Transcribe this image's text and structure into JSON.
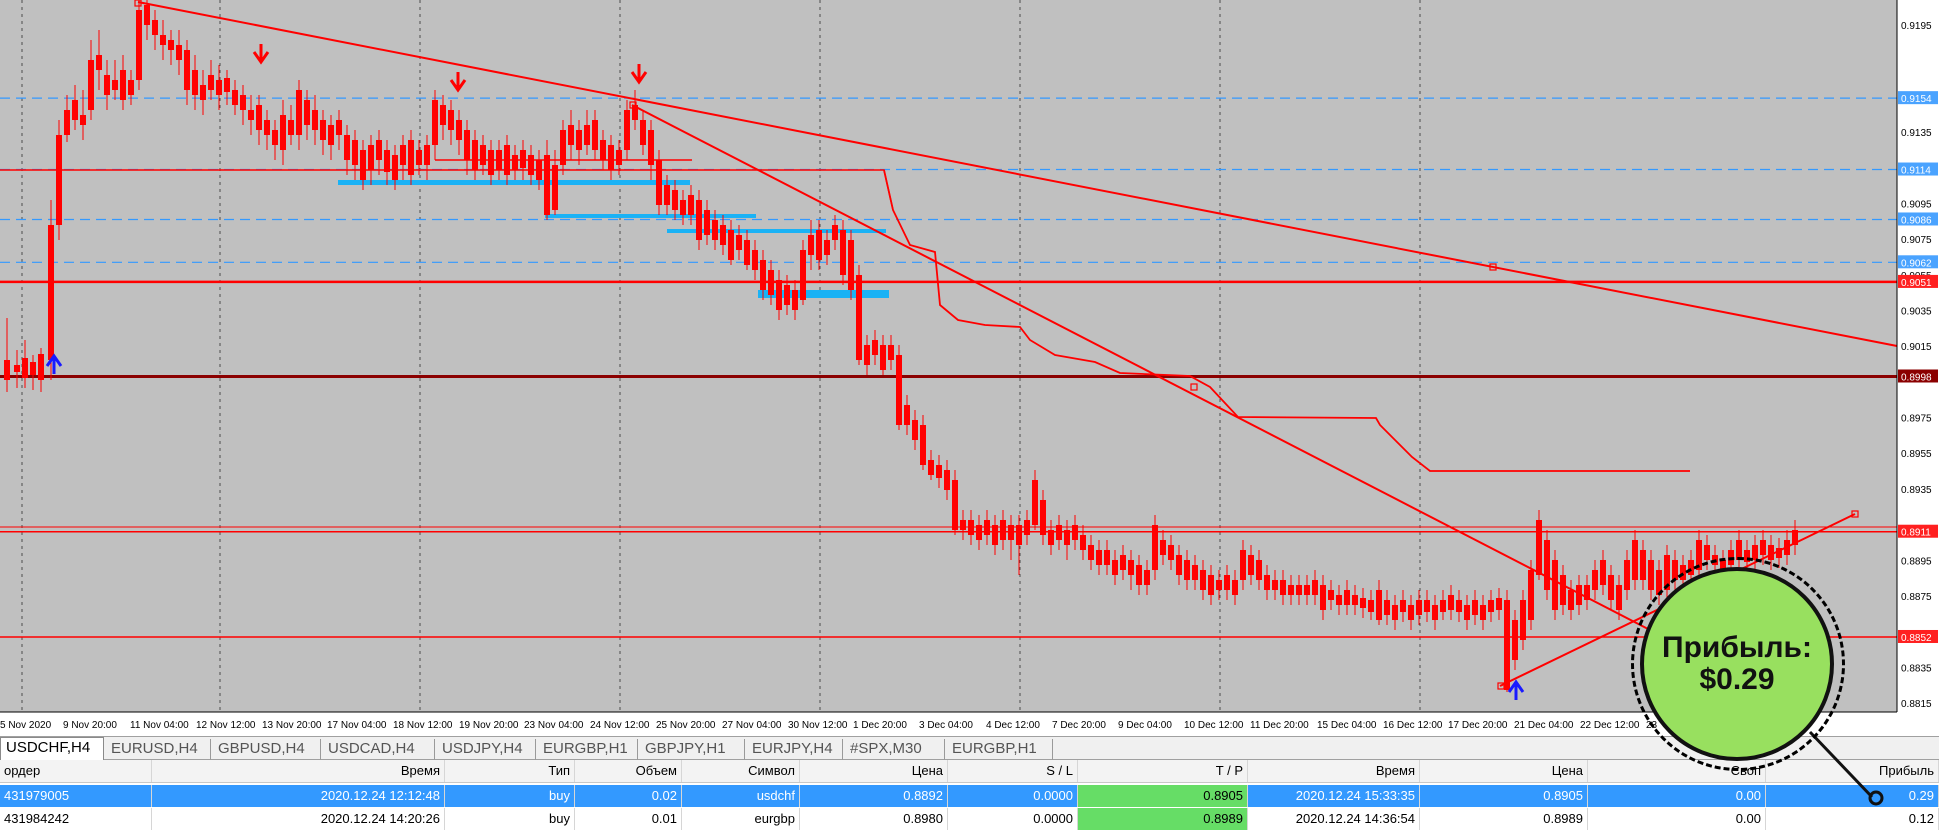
{
  "chart": {
    "symbol": "USDCHF.H4",
    "price_labels": [
      {
        "text": "0.9195",
        "y": 0.9195
      },
      {
        "text": "0.9154",
        "y": 0.9154,
        "boxed": true
      },
      {
        "text": "0.9135",
        "y": 0.9135
      },
      {
        "text": "0.9114",
        "y": 0.9114,
        "boxed": true
      },
      {
        "text": "0.9095",
        "y": 0.9095
      },
      {
        "text": "0.9086",
        "y": 0.9086,
        "boxed": true
      },
      {
        "text": "0.9075",
        "y": 0.9075
      },
      {
        "text": "0.9062",
        "y": 0.9062,
        "boxed": true
      },
      {
        "text": "0.9055",
        "y": 0.9055
      },
      {
        "text": "0.9051",
        "y": 0.9051,
        "boxed": true,
        "red": true
      },
      {
        "text": "0.9035",
        "y": 0.9035
      },
      {
        "text": "0.9015",
        "y": 0.9015
      },
      {
        "text": "0.8998",
        "y": 0.8998,
        "boxed": true,
        "dark": true
      },
      {
        "text": "0.8975",
        "y": 0.8975
      },
      {
        "text": "0.8955",
        "y": 0.8955
      },
      {
        "text": "0.8935",
        "y": 0.8935
      },
      {
        "text": "0.8911",
        "y": 0.8911,
        "boxed": true,
        "red": true
      },
      {
        "text": "0.8895",
        "y": 0.8895
      },
      {
        "text": "0.8875",
        "y": 0.8875
      },
      {
        "text": "0.8852",
        "y": 0.8852,
        "boxed": true,
        "red": true
      },
      {
        "text": "0.8835",
        "y": 0.8835
      },
      {
        "text": "0.8815",
        "y": 0.8815
      }
    ],
    "time_labels": [
      "5 Nov 2020",
      "9 Nov 20:00",
      "11 Nov 04:00",
      "12 Nov 12:00",
      "13 Nov 20:00",
      "17 Nov 04:00",
      "18 Nov 12:00",
      "19 Nov 20:00",
      "23 Nov 04:00",
      "24 Nov 12:00",
      "25 Nov 20:00",
      "27 Nov 04:00",
      "30 Nov 12:00",
      "1 Dec 20:00",
      "3 Dec 04:00",
      "4 Dec 12:00",
      "7 Dec 20:00",
      "9 Dec 04:00",
      "10 Dec 12:00",
      "11 Dec 20:00",
      "15 Dec 04:00",
      "16 Dec 12:00",
      "17 Dec 20:00",
      "21 Dec 04:00",
      "22 Dec 12:00",
      "23"
    ],
    "colors": {
      "bull": "#2e9b2e",
      "bear": "#ff0000",
      "line": "#ff0000",
      "dash": "#3399ff",
      "zone": "#1ab2f5",
      "dark": "#8b0000",
      "grid": "#000000"
    }
  },
  "tabs": [
    "USDCHF,H4",
    "EURUSD,H4",
    "GBPUSD,H4",
    "USDCAD,H4",
    "USDJPY,H4",
    "EURGBP,H1",
    "GBPJPY,H1",
    "EURJPY,H4",
    "#SPX,M30",
    "EURGBP,H1"
  ],
  "table": {
    "headers": [
      "ордер",
      "Время",
      "Тип",
      "Объем",
      "Символ",
      "Цена",
      "S / L",
      "T / P",
      "Время",
      "Цена",
      "Своп",
      "Прибыль"
    ],
    "rows": [
      [
        "431979005",
        "2020.12.24 12:12:48",
        "buy",
        "0.02",
        "usdchf",
        "0.8892",
        "0.0000",
        "0.8905",
        "2020.12.24 15:33:35",
        "0.8905",
        "0.00",
        "0.29"
      ],
      [
        "431984242",
        "2020.12.24 14:20:26",
        "buy",
        "0.01",
        "eurgbp",
        "0.8980",
        "0.0000",
        "0.8989",
        "2020.12.24 14:36:54",
        "0.8989",
        "0.00",
        "0.12"
      ]
    ]
  },
  "bubble": {
    "line1": "Прибыль:",
    "line2": "$0.29"
  }
}
